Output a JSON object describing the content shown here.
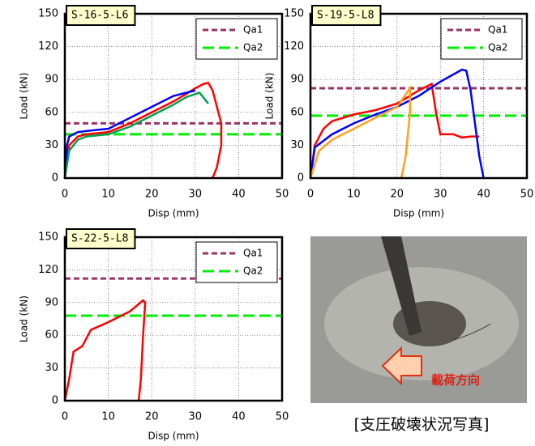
{
  "chart_data": [
    {
      "type": "line",
      "title": "S-16-5-L6",
      "xlabel": "Disp (mm)",
      "ylabel": "Load (kN)",
      "xlim": [
        0,
        50
      ],
      "ylim": [
        0,
        150
      ],
      "xticks": [
        0,
        10,
        20,
        30,
        40,
        50
      ],
      "yticks": [
        0,
        30,
        60,
        90,
        120,
        150
      ],
      "grid": true,
      "legend": "upper right",
      "series": [
        {
          "name": "Qa1",
          "color": "#993366",
          "dashed": true,
          "x": [
            0,
            50
          ],
          "values": [
            50,
            50
          ]
        },
        {
          "name": "Qa2",
          "color": "#00ee00",
          "dashed": true,
          "x": [
            0,
            50
          ],
          "values": [
            40,
            40
          ]
        },
        {
          "color": "#ff0000",
          "x": [
            0,
            1,
            3,
            5,
            10,
            15,
            20,
            25,
            28,
            30,
            32,
            33,
            34,
            36,
            36,
            35,
            34
          ],
          "values": [
            0,
            30,
            38,
            40,
            42,
            50,
            60,
            70,
            77,
            82,
            86,
            87,
            80,
            50,
            30,
            10,
            0
          ]
        },
        {
          "color": "#0000ff",
          "x": [
            0,
            0.5,
            1,
            3,
            5,
            10,
            15,
            20,
            25,
            28,
            30
          ],
          "values": [
            0,
            30,
            38,
            42,
            43,
            45,
            55,
            65,
            75,
            78,
            80
          ]
        },
        {
          "color": "#00a050",
          "x": [
            0,
            1,
            3,
            5,
            10,
            15,
            20,
            25,
            28,
            31,
            33
          ],
          "values": [
            0,
            25,
            35,
            38,
            40,
            47,
            57,
            67,
            74,
            78,
            68
          ]
        }
      ]
    },
    {
      "type": "line",
      "title": "S-19-5-L8",
      "xlabel": "Disp (mm)",
      "ylabel": "Load (kN)",
      "xlim": [
        0,
        50
      ],
      "ylim": [
        0,
        150
      ],
      "xticks": [
        0,
        10,
        20,
        30,
        40,
        50
      ],
      "yticks": [
        0,
        30,
        60,
        90,
        120,
        150
      ],
      "grid": true,
      "legend": "upper right",
      "series": [
        {
          "name": "Qa1",
          "color": "#993366",
          "dashed": true,
          "x": [
            0,
            50
          ],
          "values": [
            82,
            82
          ]
        },
        {
          "name": "Qa2",
          "color": "#00ee00",
          "dashed": true,
          "x": [
            0,
            50
          ],
          "values": [
            57,
            57
          ]
        },
        {
          "color": "#ff0000",
          "x": [
            0,
            1,
            3,
            5,
            10,
            15,
            20,
            25,
            27,
            28,
            29,
            30,
            33,
            35,
            37,
            38,
            39
          ],
          "values": [
            0,
            30,
            45,
            52,
            58,
            62,
            68,
            80,
            84,
            86,
            60,
            40,
            40,
            37,
            38,
            38,
            38
          ]
        },
        {
          "color": "#0000ff",
          "x": [
            0,
            1,
            5,
            10,
            15,
            20,
            25,
            30,
            35,
            36,
            37,
            38,
            39,
            40
          ],
          "values": [
            0,
            28,
            40,
            50,
            58,
            65,
            75,
            88,
            99,
            98,
            80,
            50,
            20,
            0
          ]
        },
        {
          "color": "#ffa020",
          "x": [
            0,
            2,
            5,
            10,
            15,
            20,
            23,
            23,
            22,
            21
          ],
          "values": [
            0,
            25,
            35,
            45,
            55,
            65,
            82,
            60,
            20,
            0
          ]
        }
      ]
    },
    {
      "type": "line",
      "title": "S-22-5-L8",
      "xlabel": "Disp (mm)",
      "ylabel": "Load (kN)",
      "xlim": [
        0,
        50
      ],
      "ylim": [
        0,
        150
      ],
      "xticks": [
        0,
        10,
        20,
        30,
        40,
        50
      ],
      "yticks": [
        0,
        30,
        60,
        90,
        120,
        150
      ],
      "grid": true,
      "legend": "upper right",
      "series": [
        {
          "name": "Qa1",
          "color": "#993366",
          "dashed": true,
          "x": [
            0,
            50
          ],
          "values": [
            112,
            112
          ]
        },
        {
          "name": "Qa2",
          "color": "#00ee00",
          "dashed": true,
          "x": [
            0,
            50
          ],
          "values": [
            78,
            78
          ]
        },
        {
          "color": "#ff0000",
          "x": [
            0,
            1,
            2,
            4,
            6,
            10,
            15,
            18,
            18.5,
            18,
            17.5,
            17
          ],
          "values": [
            0,
            20,
            45,
            50,
            65,
            72,
            82,
            92,
            90,
            60,
            20,
            0
          ]
        }
      ]
    }
  ],
  "photo": {
    "label": "載荷方向",
    "caption": "[支圧破壊状況写真]"
  }
}
